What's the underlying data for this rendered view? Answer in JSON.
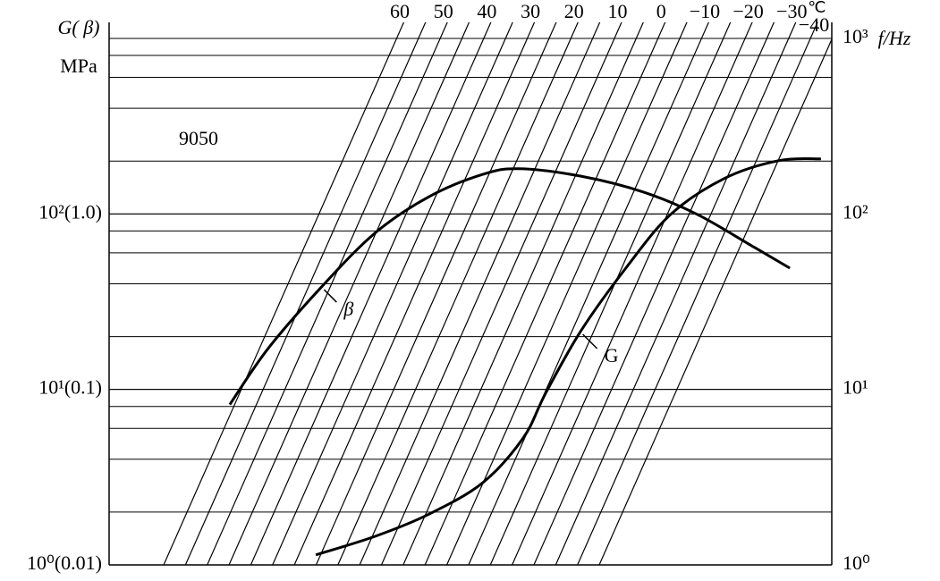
{
  "chart_data": {
    "type": "nomogram",
    "y_label": "G( β)",
    "y_unit": "MPa",
    "y2_label": "f/Hz",
    "log_y": true,
    "ylim": [
      1,
      1000
    ],
    "yticks": [
      {
        "value": 1,
        "label": "10⁰(0.01)"
      },
      {
        "value": 10,
        "label": "10¹(0.1)"
      },
      {
        "value": 100,
        "label": "10²(1.0)"
      }
    ],
    "y2ticks": [
      {
        "value": 1,
        "label": "10⁰"
      },
      {
        "value": 10,
        "label": "10¹"
      },
      {
        "value": 100,
        "label": "10²"
      },
      {
        "value": 1000,
        "label": "10³"
      }
    ],
    "minor_yticks": [
      2,
      4,
      6,
      8,
      20,
      40,
      60,
      80,
      200,
      400,
      600,
      800
    ],
    "xlim": [
      0,
      100
    ],
    "isotherm_unit": "℃",
    "isotherms": [
      60,
      50,
      40,
      30,
      20,
      10,
      0,
      {
        "value": -10,
        "label": "−10"
      },
      {
        "value": -20,
        "label": "−20"
      },
      {
        "value": -30,
        "label": "−30"
      },
      {
        "value": -40,
        "label": "−40"
      }
    ],
    "annotations": [
      "9050"
    ],
    "series": [
      {
        "name": "β",
        "color": "#000000",
        "x": [
          16.7,
          22.0,
          29.5,
          36.9,
          44.3,
          51.7,
          56.7,
          65.3,
          74.0,
          81.4,
          88.9,
          94.2
        ],
        "values": [
          8.2,
          17.1,
          38.8,
          78.5,
          125.6,
          168,
          181,
          164,
          133,
          99.3,
          65.9,
          49.1
        ]
      },
      {
        "name": "G",
        "color": "#000000",
        "x": [
          28.6,
          36.9,
          44.3,
          51.7,
          57.3,
          60.4,
          65.3,
          71.5,
          77.7,
          85.1,
          92.6,
          98.5
        ],
        "values": [
          1.14,
          1.46,
          1.95,
          2.94,
          5.29,
          9.5,
          21.6,
          49.1,
          99.3,
          159,
          201,
          206
        ]
      }
    ]
  }
}
